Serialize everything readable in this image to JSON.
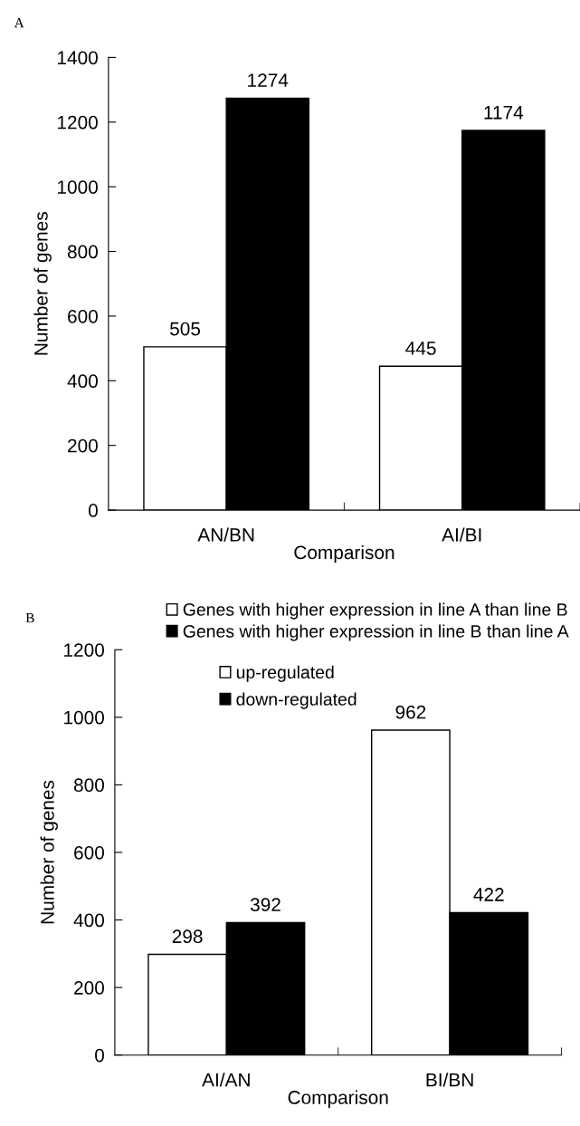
{
  "chart_data": [
    {
      "type": "bar",
      "title": "A",
      "xlabel": "Comparison",
      "ylabel": "Number of genes",
      "categories": [
        "AN/BN",
        "AI/BI"
      ],
      "series": [
        {
          "name": "Genes with higher expression in line A than line B",
          "color": "#ffffff",
          "values": [
            505,
            445
          ]
        },
        {
          "name": "Genes with higher expression in line B than line A",
          "color": "#000000",
          "values": [
            1274,
            1174
          ]
        }
      ],
      "ylim": [
        0,
        1400
      ],
      "yticks": [
        0,
        200,
        400,
        600,
        800,
        1000,
        1200,
        1400
      ],
      "data_labels": true,
      "grid": false,
      "legend": "bottom"
    },
    {
      "type": "bar",
      "title": "B",
      "xlabel": "Comparison",
      "ylabel": "Number of genes",
      "categories": [
        "AI/AN",
        "BI/BN"
      ],
      "series": [
        {
          "name": "up-regulated",
          "color": "#ffffff",
          "values": [
            298,
            962
          ]
        },
        {
          "name": "down-regulated",
          "color": "#000000",
          "values": [
            392,
            422
          ]
        }
      ],
      "ylim": [
        0,
        1200
      ],
      "yticks": [
        0,
        200,
        400,
        600,
        800,
        1000,
        1200
      ],
      "data_labels": true,
      "grid": false,
      "legend": "top left"
    }
  ]
}
